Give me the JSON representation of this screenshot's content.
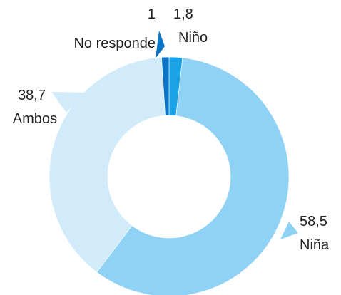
{
  "chart_data": {
    "type": "pie",
    "title": "",
    "slices": [
      {
        "label": "Niño",
        "value": 1.8,
        "value_label": "1,8",
        "color": "#1aa3e6"
      },
      {
        "label": "Niña",
        "value": 58.5,
        "value_label": "58,5",
        "color": "#8fd2f5"
      },
      {
        "label": "Ambos",
        "value": 38.7,
        "value_label": "38,7",
        "color": "#d2ebfa"
      },
      {
        "label": "No responde",
        "value": 1.0,
        "value_label": "1",
        "color": "#0b74c4"
      }
    ],
    "donut": true,
    "start_angle_deg": 0,
    "direction": "clockwise"
  }
}
